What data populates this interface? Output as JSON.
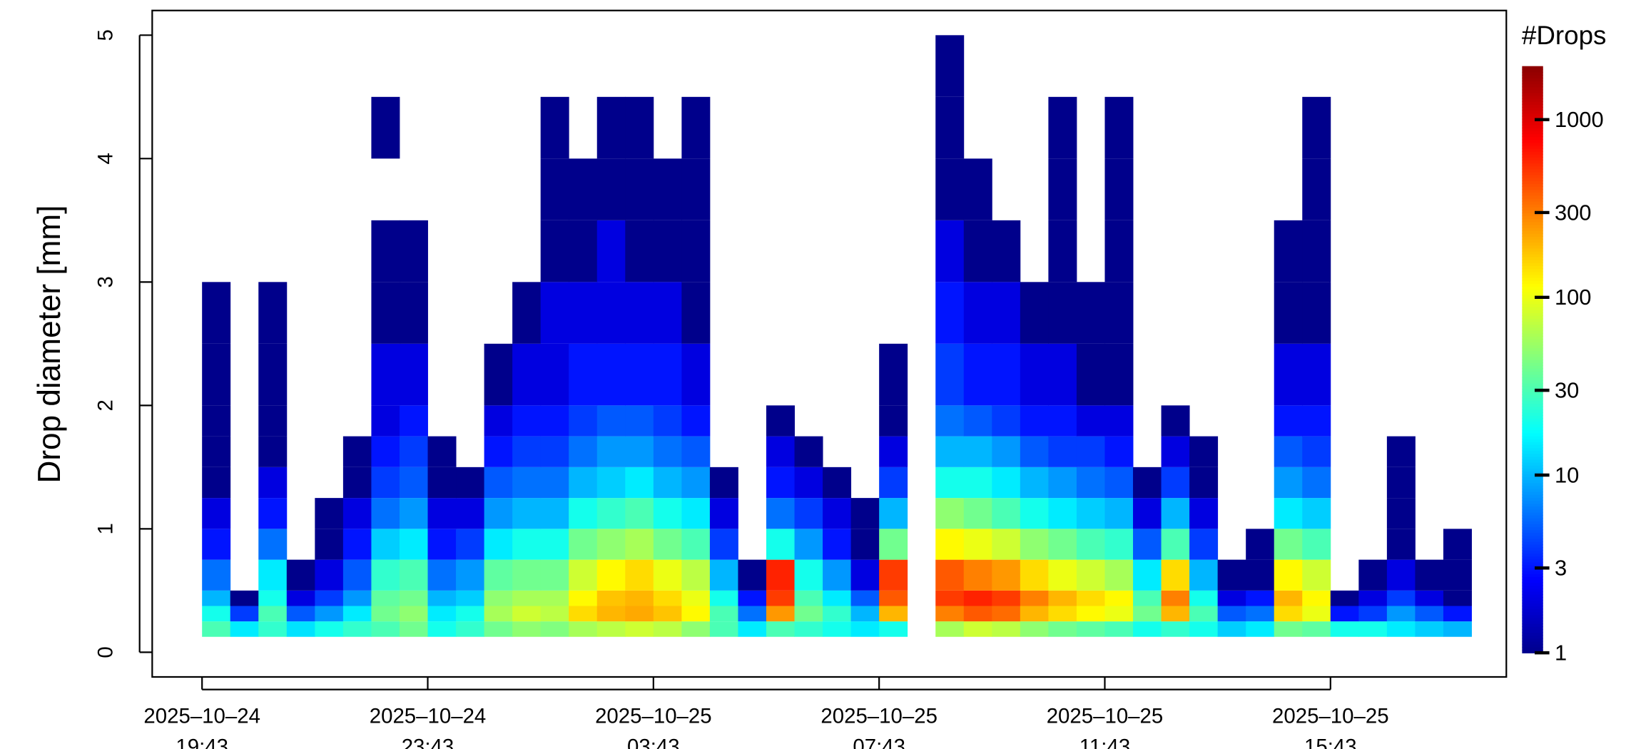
{
  "chart_data": {
    "type": "heatmap",
    "y_label": "Drop diameter [mm]",
    "colorbar_title": "#Drops",
    "x_bins": [
      "2025-10-24T19:43",
      "2025-10-24T20:13",
      "2025-10-24T20:43",
      "2025-10-24T21:13",
      "2025-10-24T21:43",
      "2025-10-24T22:13",
      "2025-10-24T22:43",
      "2025-10-24T23:13",
      "2025-10-24T23:43",
      "2025-10-25T00:13",
      "2025-10-25T00:43",
      "2025-10-25T01:13",
      "2025-10-25T01:43",
      "2025-10-25T02:13",
      "2025-10-25T02:43",
      "2025-10-25T03:13",
      "2025-10-25T03:43",
      "2025-10-25T04:13",
      "2025-10-25T04:43",
      "2025-10-25T05:13",
      "2025-10-25T05:43",
      "2025-10-25T06:13",
      "2025-10-25T06:43",
      "2025-10-25T07:13",
      "2025-10-25T07:43",
      "2025-10-25T08:13",
      "2025-10-25T08:43",
      "2025-10-25T09:13",
      "2025-10-25T09:43",
      "2025-10-25T10:13",
      "2025-10-25T10:43",
      "2025-10-25T11:13",
      "2025-10-25T11:43",
      "2025-10-25T12:13",
      "2025-10-25T12:43",
      "2025-10-25T13:13",
      "2025-10-25T13:43",
      "2025-10-25T14:13",
      "2025-10-25T14:43",
      "2025-10-25T15:13",
      "2025-10-25T15:43",
      "2025-10-25T16:13",
      "2025-10-25T16:43",
      "2025-10-25T17:13",
      "2025-10-25T17:43",
      "2025-10-25T18:13"
    ],
    "y_bins": [
      0.125,
      0.25,
      0.375,
      0.5,
      0.75,
      1,
      1.25,
      1.5,
      1.75,
      2,
      2.5,
      3,
      3.5,
      4,
      4.5,
      5
    ],
    "z": [
      [
        30,
        20,
        10,
        6,
        3,
        2,
        1,
        1,
        1,
        1,
        1,
        null,
        null,
        null,
        null
      ],
      [
        15,
        4,
        1,
        null,
        null,
        null,
        null,
        null,
        null,
        null,
        null,
        null,
        null,
        null,
        null
      ],
      [
        25,
        30,
        20,
        15,
        6,
        3,
        2,
        1,
        1,
        1,
        1,
        null,
        null,
        null,
        null
      ],
      [
        14,
        5,
        2,
        1,
        null,
        null,
        null,
        null,
        null,
        null,
        null,
        null,
        null,
        null,
        null
      ],
      [
        20,
        8,
        4,
        2,
        1,
        1,
        null,
        null,
        null,
        null,
        null,
        null,
        null,
        null,
        null
      ],
      [
        25,
        15,
        8,
        5,
        3,
        2,
        1,
        1,
        null,
        null,
        null,
        null,
        null,
        null,
        null
      ],
      [
        30,
        40,
        35,
        25,
        12,
        6,
        4,
        3,
        2,
        2,
        1,
        1,
        null,
        1,
        null
      ],
      [
        40,
        50,
        40,
        30,
        15,
        8,
        5,
        4,
        3,
        2,
        1,
        1,
        null,
        null,
        null
      ],
      [
        20,
        15,
        10,
        6,
        3,
        2,
        1,
        1,
        null,
        null,
        null,
        null,
        null,
        null,
        null
      ],
      [
        25,
        20,
        12,
        8,
        4,
        2,
        1,
        null,
        null,
        null,
        null,
        null,
        null,
        null,
        null
      ],
      [
        40,
        60,
        50,
        35,
        15,
        8,
        5,
        3,
        2,
        1,
        null,
        null,
        null,
        null,
        null
      ],
      [
        50,
        80,
        60,
        40,
        20,
        10,
        6,
        4,
        3,
        2,
        1,
        null,
        null,
        null,
        null
      ],
      [
        45,
        70,
        60,
        40,
        20,
        10,
        6,
        4,
        3,
        2,
        2,
        1,
        1,
        1,
        null
      ],
      [
        60,
        150,
        120,
        80,
        40,
        20,
        10,
        6,
        4,
        3,
        2,
        1,
        1,
        null,
        null
      ],
      [
        70,
        200,
        180,
        120,
        50,
        25,
        12,
        8,
        5,
        3,
        2,
        2,
        1,
        1,
        null
      ],
      [
        80,
        220,
        200,
        150,
        60,
        30,
        15,
        8,
        5,
        3,
        2,
        1,
        1,
        1,
        null
      ],
      [
        70,
        180,
        150,
        100,
        40,
        20,
        10,
        6,
        4,
        3,
        2,
        1,
        1,
        null,
        null
      ],
      [
        50,
        120,
        100,
        70,
        30,
        15,
        8,
        5,
        3,
        2,
        1,
        1,
        1,
        1,
        null
      ],
      [
        30,
        30,
        20,
        10,
        4,
        2,
        1,
        null,
        null,
        null,
        null,
        null,
        null,
        null,
        null
      ],
      [
        15,
        6,
        3,
        1,
        null,
        null,
        null,
        null,
        null,
        null,
        null,
        null,
        null,
        null,
        null
      ],
      [
        30,
        250,
        500,
        600,
        20,
        6,
        3,
        2,
        1,
        null,
        null,
        null,
        null,
        null,
        null
      ],
      [
        25,
        40,
        30,
        20,
        8,
        4,
        2,
        1,
        null,
        null,
        null,
        null,
        null,
        null,
        null
      ],
      [
        20,
        25,
        15,
        8,
        3,
        2,
        1,
        null,
        null,
        null,
        null,
        null,
        null,
        null,
        null
      ],
      [
        15,
        10,
        5,
        2,
        1,
        1,
        null,
        null,
        null,
        null,
        null,
        null,
        null,
        null,
        null
      ],
      [
        20,
        200,
        400,
        500,
        40,
        10,
        4,
        2,
        1,
        1,
        null,
        null,
        null,
        null,
        null
      ],
      [
        null,
        null,
        null,
        null,
        null,
        null,
        null,
        null,
        null,
        null,
        null,
        null,
        null,
        null,
        null
      ],
      [
        60,
        300,
        500,
        400,
        120,
        50,
        20,
        10,
        6,
        4,
        3,
        2,
        1,
        1,
        1
      ],
      [
        80,
        400,
        600,
        300,
        100,
        40,
        20,
        10,
        5,
        3,
        2,
        1,
        1,
        null,
        null
      ],
      [
        70,
        350,
        500,
        250,
        80,
        30,
        15,
        8,
        4,
        3,
        2,
        1,
        null,
        null,
        null
      ],
      [
        50,
        200,
        300,
        150,
        50,
        20,
        10,
        5,
        3,
        2,
        1,
        null,
        null,
        null,
        null
      ],
      [
        40,
        150,
        200,
        100,
        40,
        15,
        8,
        4,
        3,
        2,
        1,
        1,
        1,
        1,
        null
      ],
      [
        35,
        120,
        150,
        80,
        30,
        12,
        6,
        4,
        2,
        1,
        1,
        null,
        null,
        null,
        null
      ],
      [
        30,
        100,
        120,
        60,
        25,
        10,
        5,
        3,
        2,
        1,
        1,
        1,
        1,
        1,
        null
      ],
      [
        20,
        40,
        30,
        15,
        5,
        2,
        1,
        null,
        null,
        null,
        null,
        null,
        null,
        null,
        null
      ],
      [
        25,
        200,
        300,
        150,
        30,
        10,
        4,
        2,
        1,
        null,
        null,
        null,
        null,
        null,
        null
      ],
      [
        20,
        30,
        20,
        10,
        4,
        2,
        1,
        1,
        null,
        null,
        null,
        null,
        null,
        null,
        null
      ],
      [
        12,
        5,
        2,
        1,
        null,
        null,
        null,
        null,
        null,
        null,
        null,
        null,
        null,
        null,
        null
      ],
      [
        15,
        6,
        3,
        1,
        1,
        null,
        null,
        null,
        null,
        null,
        null,
        null,
        null,
        null,
        null
      ],
      [
        40,
        150,
        200,
        120,
        40,
        15,
        8,
        5,
        3,
        2,
        1,
        1,
        null,
        null,
        null
      ],
      [
        35,
        100,
        120,
        80,
        30,
        12,
        6,
        4,
        3,
        2,
        1,
        1,
        1,
        1,
        null
      ],
      [
        20,
        3,
        1,
        null,
        null,
        null,
        null,
        null,
        null,
        null,
        null,
        null,
        null,
        null,
        null
      ],
      [
        20,
        4,
        2,
        1,
        null,
        null,
        null,
        null,
        null,
        null,
        null,
        null,
        null,
        null,
        null
      ],
      [
        15,
        8,
        4,
        2,
        1,
        1,
        1,
        1,
        null,
        null,
        null,
        null,
        null,
        null,
        null
      ],
      [
        12,
        5,
        2,
        1,
        null,
        null,
        null,
        null,
        null,
        null,
        null,
        null,
        null,
        null,
        null
      ],
      [
        10,
        3,
        1,
        1,
        1,
        null,
        null,
        null,
        null,
        null,
        null,
        null,
        null,
        null,
        null
      ]
    ],
    "xlim": [
      "2025-10-24T18:50",
      "2025-10-25T18:50"
    ],
    "xticks": [
      {
        "value": "2025-10-24T19:43",
        "label": [
          "2025–10–24",
          "19:43"
        ]
      },
      {
        "value": "2025-10-24T23:43",
        "label": [
          "2025–10–24",
          "23:43"
        ]
      },
      {
        "value": "2025-10-25T03:43",
        "label": [
          "2025–10–25",
          "03:43"
        ]
      },
      {
        "value": "2025-10-25T07:43",
        "label": [
          "2025–10–25",
          "07:43"
        ]
      },
      {
        "value": "2025-10-25T11:43",
        "label": [
          "2025–10–25",
          "11:43"
        ]
      },
      {
        "value": "2025-10-25T15:43",
        "label": [
          "2025–10–25",
          "15:43"
        ]
      }
    ],
    "ylim": [
      -0.2,
      5.2
    ],
    "yticks": [
      0,
      1,
      2,
      3,
      4,
      5
    ],
    "color_scale": "log",
    "zlim": [
      1,
      2000
    ],
    "zticks": [
      1,
      3,
      10,
      30,
      100,
      300,
      1000
    ],
    "colormap": [
      "#00008b",
      "#0000ff",
      "#0080ff",
      "#00ffff",
      "#80ff80",
      "#ffff00",
      "#ff8000",
      "#ff0000",
      "#8b0000"
    ]
  }
}
